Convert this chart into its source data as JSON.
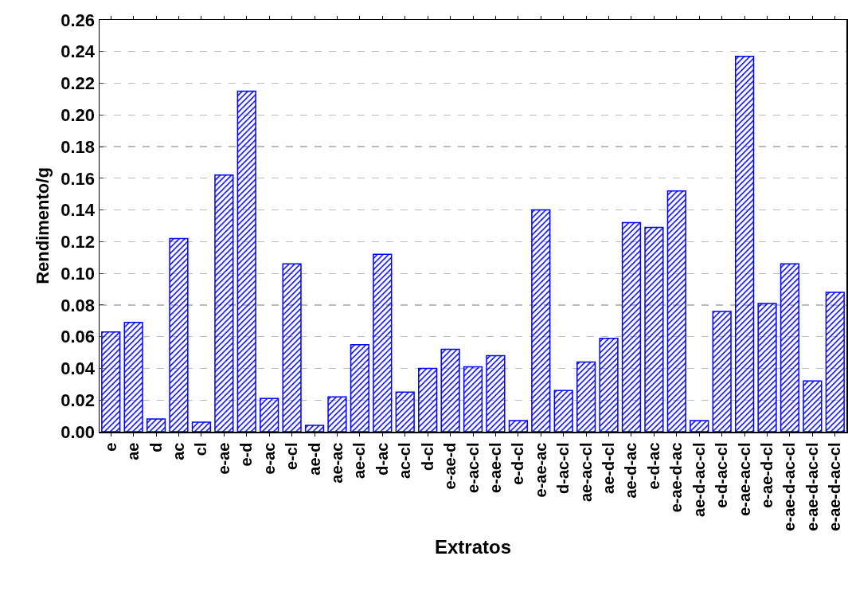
{
  "chart_data": {
    "type": "bar",
    "xlabel": "Extratos",
    "ylabel": "Rendimento/g",
    "categories": [
      "e",
      "ae",
      "d",
      "ac",
      "cl",
      "e-ae",
      "e-d",
      "e-ac",
      "e-cl",
      "ae-d",
      "ae-ac",
      "ae-cl",
      "d-ac",
      "ac-cl",
      "d-cl",
      "e-ae-d",
      "e-ac-cl",
      "e-ae-cl",
      "e-d-cl",
      "e-ae-ac",
      "d-ac-cl",
      "ae-ac-cl",
      "ae-d-cl",
      "ae-d-ac",
      "e-d-ac",
      "e-ae-d-ac",
      "ae-d-ac-cl",
      "e-d-ac-cl",
      "e-ae-ac-cl",
      "e-ae-d-cl",
      "e-ae-d-ac-cl",
      "e-ae-d-ac-cl",
      "e-ae-d-ac-cl"
    ],
    "values": [
      0.063,
      0.069,
      0.008,
      0.122,
      0.006,
      0.162,
      0.215,
      0.021,
      0.106,
      0.004,
      0.022,
      0.055,
      0.112,
      0.025,
      0.04,
      0.052,
      0.041,
      0.048,
      0.007,
      0.14,
      0.026,
      0.044,
      0.059,
      0.132,
      0.129,
      0.152,
      0.007,
      0.076,
      0.237,
      0.081,
      0.106,
      0.032,
      0.088
    ],
    "color": "#0000ff",
    "ylim": [
      0,
      0.26
    ],
    "yticks": [
      {
        "value": 0,
        "label": "0.00"
      },
      {
        "value": 0.02,
        "label": "0.02"
      },
      {
        "value": 0.04,
        "label": "0.04"
      },
      {
        "value": 0.06,
        "label": "0.06"
      },
      {
        "value": 0.08,
        "label": "0.08"
      },
      {
        "value": 0.1,
        "label": "0.10"
      },
      {
        "value": 0.12,
        "label": "0.12"
      },
      {
        "value": 0.14,
        "label": "0.14"
      },
      {
        "value": 0.16,
        "label": "0.16"
      },
      {
        "value": 0.18,
        "label": "0.18"
      },
      {
        "value": 0.2,
        "label": "0.20"
      },
      {
        "value": 0.22,
        "label": "0.22"
      },
      {
        "value": 0.24,
        "label": "0.24"
      },
      {
        "value": 0.26,
        "label": "0.26"
      }
    ],
    "grid": "y",
    "legend": false
  }
}
